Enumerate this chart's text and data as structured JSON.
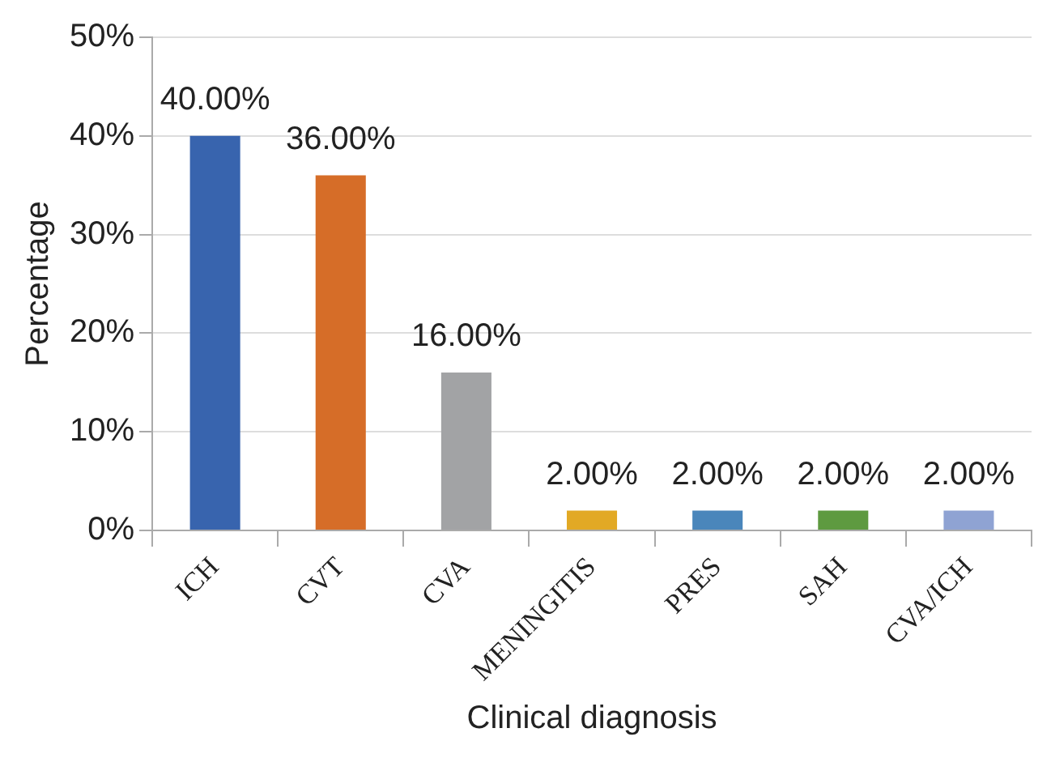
{
  "chart_data": {
    "type": "bar",
    "xlabel": "Clinical diagnosis",
    "ylabel": "Percentage",
    "categories": [
      "ICH",
      "CVT",
      "CVA",
      "MENINGITIS",
      "PRES",
      "SAH",
      "CVA/ICH"
    ],
    "values": [
      40,
      36,
      16,
      2,
      2,
      2,
      2
    ],
    "colors": [
      "#3864ae",
      "#d66d28",
      "#a2a3a5",
      "#e2a925",
      "#4a86bb",
      "#5e9a40",
      "#8fa3d3"
    ],
    "value_labels": [
      "40.00%",
      "36.00%",
      "16.00%",
      "2.00%",
      "2.00%",
      "2.00%",
      "2.00%"
    ],
    "ylim": [
      0,
      50
    ],
    "yticks": [
      {
        "value": 0,
        "label": "0%"
      },
      {
        "value": 10,
        "label": "10%"
      },
      {
        "value": 20,
        "label": "20%"
      },
      {
        "value": 30,
        "label": "30%"
      },
      {
        "value": 40,
        "label": "40%"
      },
      {
        "value": 50,
        "label": "50%"
      }
    ],
    "grid": "y",
    "legend": false
  }
}
